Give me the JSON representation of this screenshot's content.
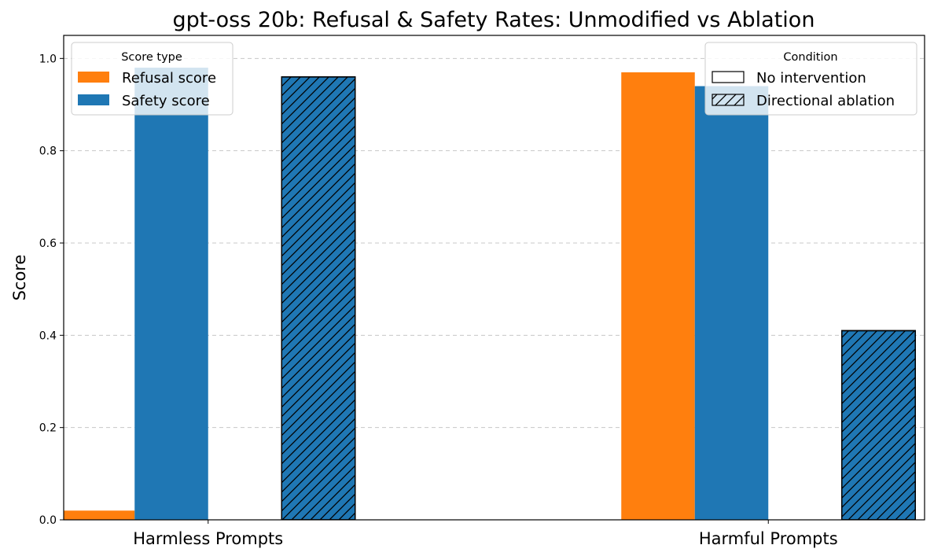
{
  "chart_data": {
    "type": "bar",
    "title": "gpt-oss 20b: Refusal & Safety Rates: Unmodified vs Ablation",
    "xlabel": "",
    "ylabel": "Score",
    "ylim": [
      0,
      1.05
    ],
    "yticks": [
      "0.0",
      "0.2",
      "0.4",
      "0.6",
      "0.8",
      "1.0"
    ],
    "grid": true,
    "categories": [
      "Harmless Prompts",
      "Harmful Prompts"
    ],
    "series": [
      {
        "name": "Refusal score",
        "condition": "No intervention",
        "color": "#ff7f0e",
        "hatch": false,
        "values": [
          0.02,
          0.97
        ]
      },
      {
        "name": "Safety score",
        "condition": "No intervention",
        "color": "#1f77b4",
        "hatch": false,
        "values": [
          0.98,
          0.94
        ]
      },
      {
        "name": "Refusal score",
        "condition": "Directional ablation",
        "color": "#ff7f0e",
        "hatch": true,
        "values": [
          0.0,
          0.0
        ]
      },
      {
        "name": "Safety score",
        "condition": "Directional ablation",
        "color": "#1f77b4",
        "hatch": true,
        "values": [
          0.96,
          0.41
        ]
      }
    ],
    "legend_score_type": {
      "title": "Score type",
      "placement": "top-left",
      "items": [
        {
          "label": "Refusal score",
          "color": "#ff7f0e"
        },
        {
          "label": "Safety score",
          "color": "#1f77b4"
        }
      ]
    },
    "legend_condition": {
      "title": "Condition",
      "placement": "top-right",
      "items": [
        {
          "label": "No intervention",
          "hatch": false
        },
        {
          "label": "Directional ablation",
          "hatch": true
        }
      ]
    }
  }
}
